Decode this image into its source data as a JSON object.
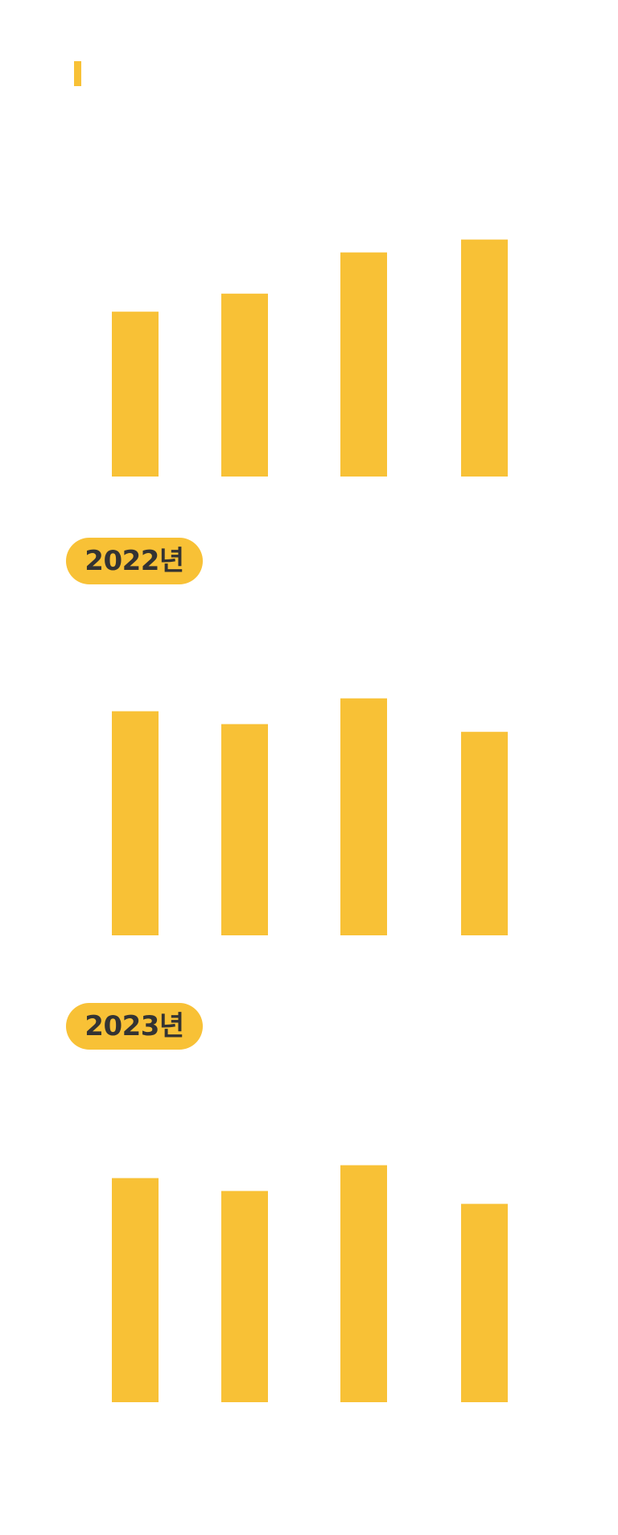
{
  "colors": {
    "accent": "#F8C136",
    "pill_text": "#333333",
    "background": "#FFFFFF"
  },
  "sections": [
    {
      "year_label": ""
    },
    {
      "year_label": "2022년"
    },
    {
      "year_label": "2023년"
    }
  ],
  "chart_data": [
    {
      "type": "bar",
      "categories": [
        "",
        "",
        "",
        ""
      ],
      "values": [
        64,
        71,
        87,
        92
      ],
      "ylim": [
        0,
        100
      ],
      "grid": false,
      "legend": "none"
    },
    {
      "type": "bar",
      "categories": [
        "",
        "",
        "",
        ""
      ],
      "values": [
        87,
        82,
        92,
        79
      ],
      "ylim": [
        0,
        100
      ],
      "grid": false,
      "legend": "none"
    },
    {
      "type": "bar",
      "categories": [
        "",
        "",
        "",
        ""
      ],
      "values": [
        87,
        82,
        92,
        77
      ],
      "ylim": [
        0,
        100
      ],
      "grid": false,
      "legend": "none"
    }
  ]
}
